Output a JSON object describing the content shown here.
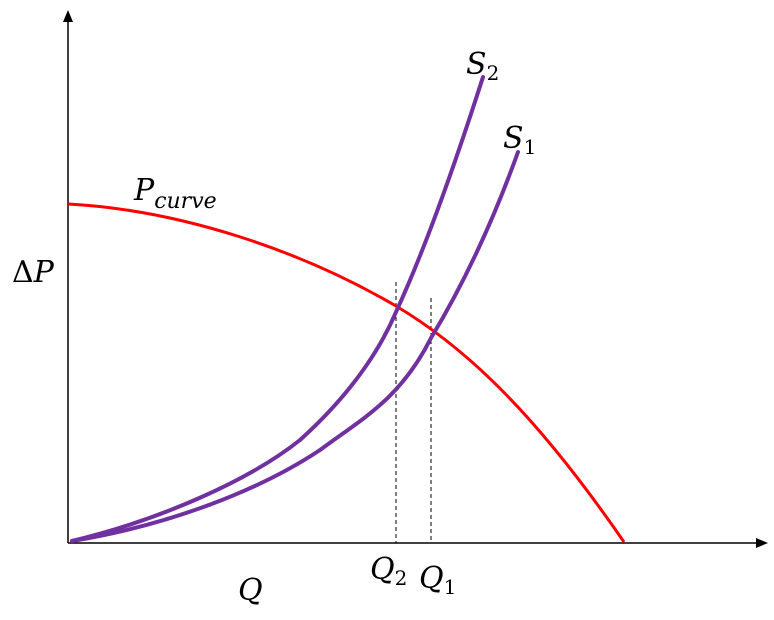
{
  "labels": {
    "y_axis": {
      "delta": "Δ",
      "symbol": "P"
    },
    "x_axis": "Q",
    "pump_curve": {
      "main": "P",
      "sub": "curve"
    },
    "system_curve_2": {
      "main": "S",
      "sub": "2"
    },
    "system_curve_1": {
      "main": "S",
      "sub": "1"
    },
    "operating_flow_2": {
      "main": "Q",
      "sub": "2"
    },
    "operating_flow_1": {
      "main": "Q",
      "sub": "1"
    }
  },
  "colors": {
    "axes": "#000000",
    "pump_curve": "#ff0000",
    "system_curves": "#7030a0",
    "guide_lines": "#000000"
  }
}
